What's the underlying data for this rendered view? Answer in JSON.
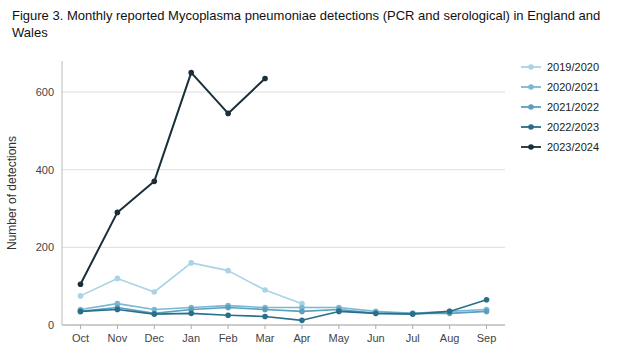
{
  "chart_data": {
    "type": "line",
    "title": "Figure 3. Monthly reported Mycoplasma pneumoniae detections (PCR and serological) in England and Wales",
    "y_label": "Number of detections",
    "categories": [
      "Oct",
      "Nov",
      "Dec",
      "Jan",
      "Feb",
      "Mar",
      "Apr",
      "May",
      "Jun",
      "Jul",
      "Aug",
      "Sep"
    ],
    "series": [
      {
        "name": "2019/2020",
        "color": "#a8d4e6",
        "marker": "circle",
        "values": [
          75,
          120,
          85,
          160,
          140,
          90,
          55,
          null,
          null,
          null,
          null,
          null
        ]
      },
      {
        "name": "2020/2021",
        "color": "#7ab8d4",
        "marker": "circle",
        "values": [
          40,
          55,
          40,
          45,
          50,
          45,
          45,
          45,
          35,
          30,
          35,
          40
        ]
      },
      {
        "name": "2021/2022",
        "color": "#5a9fbe",
        "marker": "circle",
        "values": [
          35,
          45,
          30,
          40,
          45,
          40,
          35,
          40,
          30,
          30,
          30,
          35
        ]
      },
      {
        "name": "2022/2023",
        "color": "#2a6f8a",
        "marker": "circle",
        "values": [
          35,
          40,
          28,
          30,
          25,
          22,
          12,
          35,
          30,
          28,
          35,
          65
        ]
      },
      {
        "name": "2023/2024",
        "color": "#1a2f3a",
        "marker": "circle",
        "values": [
          105,
          290,
          370,
          650,
          545,
          635,
          null,
          null,
          null,
          null,
          null,
          null
        ]
      }
    ],
    "ylim": [
      0,
      680
    ],
    "yticks": [
      0,
      200,
      400,
      600
    ],
    "grid": true,
    "legend": "right"
  }
}
